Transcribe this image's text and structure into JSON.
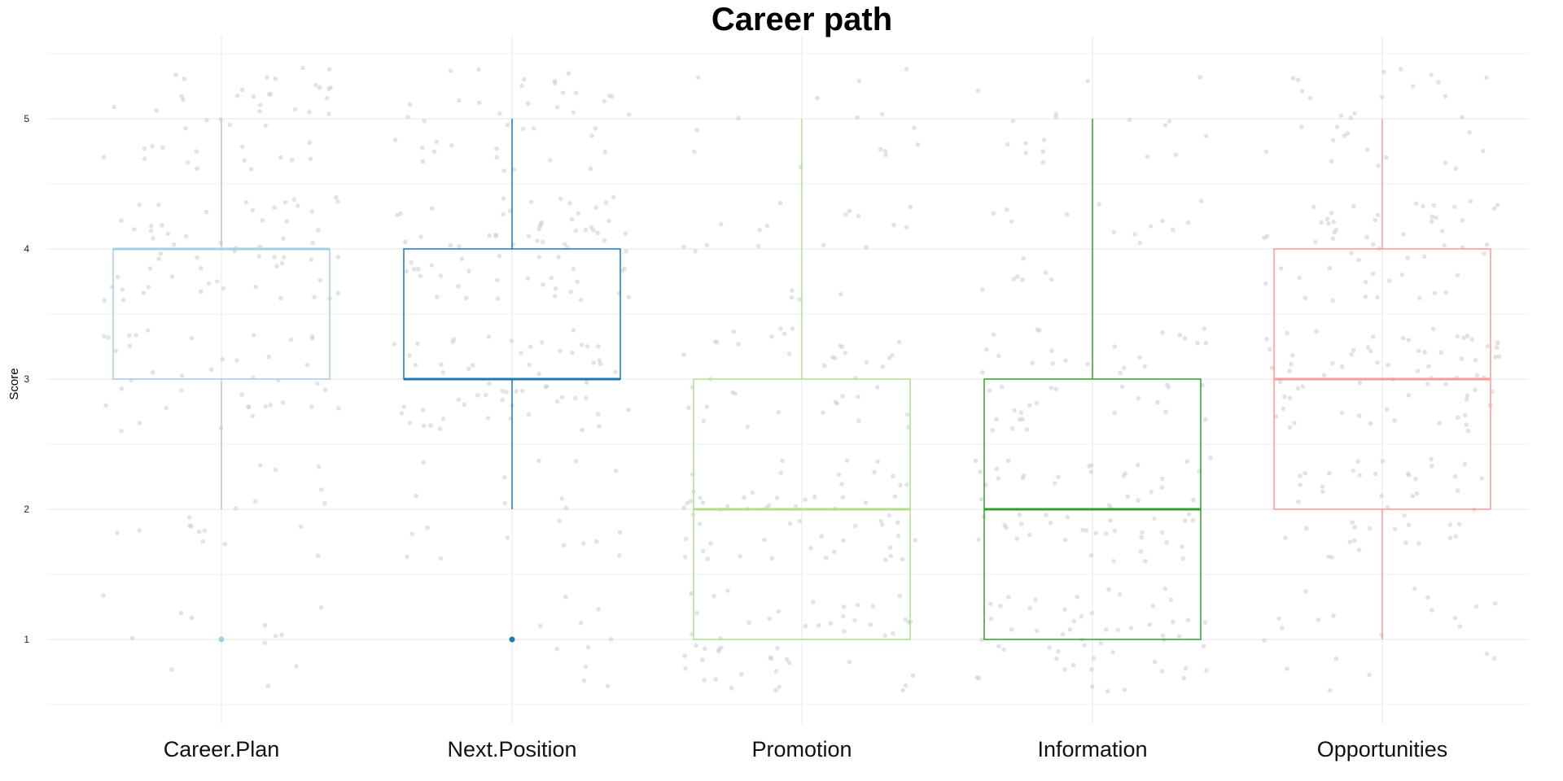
{
  "chart_data": {
    "type": "boxplot",
    "title": "Career path",
    "xlabel": "",
    "ylabel": "Score",
    "ylim": [
      0.5,
      5.5
    ],
    "yticks": [
      "1",
      "2",
      "3",
      "4",
      "5"
    ],
    "grid": true,
    "jitter_points": true,
    "categories": [
      "Career.Plan",
      "Next.Position",
      "Promotion",
      "Information",
      "Opportunities"
    ],
    "series": [
      {
        "category": "Career.Plan",
        "min": 2,
        "q1": 3,
        "median": 4,
        "q3": 4,
        "max": 5,
        "outliers": [
          1
        ],
        "color": "#a6cee3"
      },
      {
        "category": "Next.Position",
        "min": 2,
        "q1": 3,
        "median": 3,
        "q3": 4,
        "max": 5,
        "outliers": [
          1
        ],
        "color": "#1f78b4"
      },
      {
        "category": "Promotion",
        "min": 1,
        "q1": 1,
        "median": 2,
        "q3": 3,
        "max": 5,
        "outliers": [],
        "color": "#b2df8a"
      },
      {
        "category": "Information",
        "min": 1,
        "q1": 1,
        "median": 2,
        "q3": 3,
        "max": 5,
        "outliers": [],
        "color": "#33a02c"
      },
      {
        "category": "Opportunities",
        "min": 1,
        "q1": 2,
        "median": 3,
        "q3": 4,
        "max": 5,
        "outliers": [],
        "color": "#fb9a99"
      }
    ],
    "point_color": "#cccccc",
    "grid_color": "#ebebeb"
  }
}
